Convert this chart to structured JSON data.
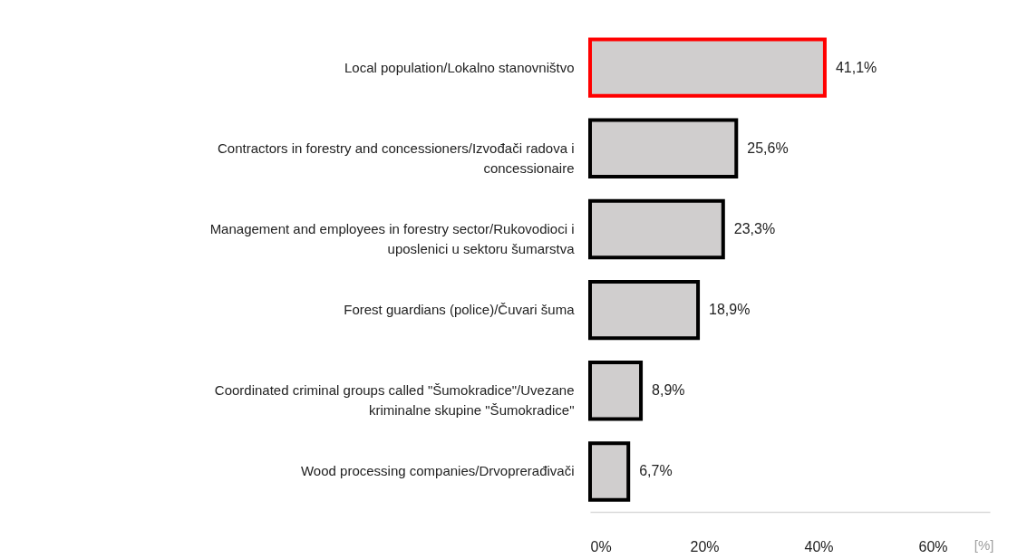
{
  "chart_data": {
    "type": "bar",
    "orientation": "horizontal",
    "categories": [
      "Local population/Lokalno stanovništvo",
      "Contractors in forestry and concessioners/Izvođači radova i concessionaire",
      "Management and employees in forestry sector/Rukovodioci i uposlenici u sektoru šumarstva",
      "Forest guardians (police)/Čuvari šuma",
      "Coordinated criminal groups called \"Šumokradice\"/Uvezane kriminalne skupine \"Šumokradice\"",
      "Wood processing companies/Drvoprerađivači"
    ],
    "values": [
      41.1,
      25.6,
      23.3,
      18.9,
      8.9,
      6.7
    ],
    "value_labels": [
      "41,1%",
      "25,6%",
      "23,3%",
      "18,9%",
      "8,9%",
      "6,7%"
    ],
    "colors": [
      "#ff0000",
      "#000000",
      "#000000",
      "#000000",
      "#000000",
      "#000000"
    ],
    "xlabel": "[%]",
    "xlim": [
      0,
      70
    ],
    "xticks": [
      {
        "value": 0,
        "label": "0%"
      },
      {
        "value": 20,
        "label": "20%"
      },
      {
        "value": 40,
        "label": "40%"
      },
      {
        "value": 60,
        "label": "60%"
      }
    ],
    "grid": false
  }
}
